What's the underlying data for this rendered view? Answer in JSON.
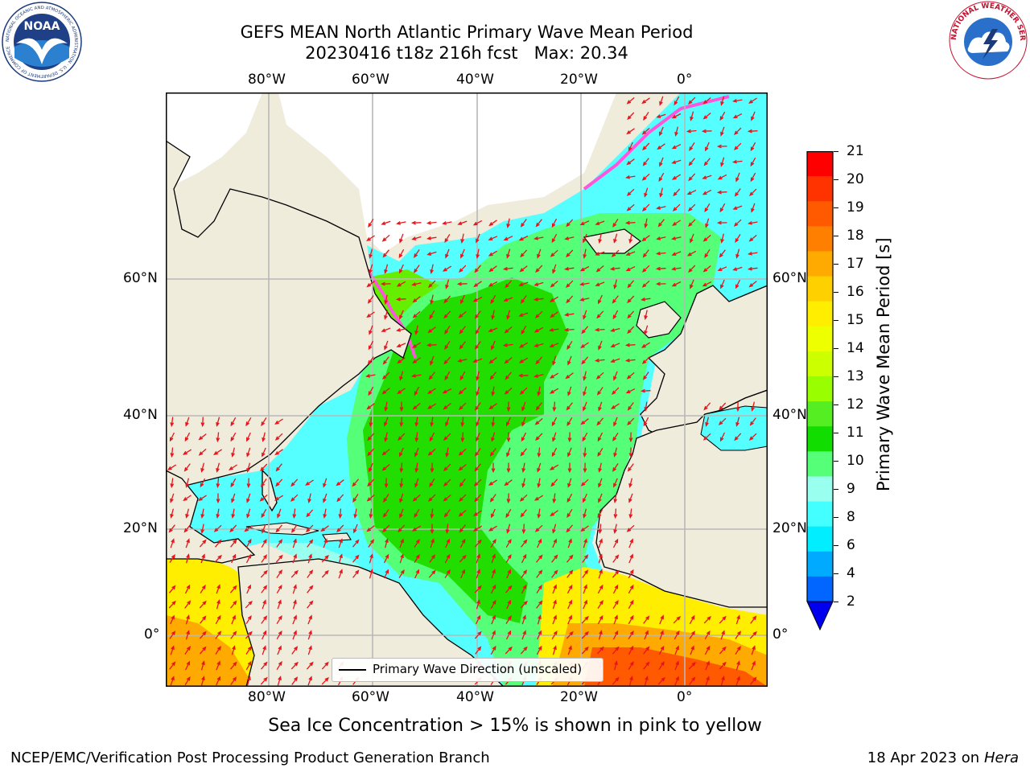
{
  "title": {
    "line1": "GEFS MEAN North Atlantic Primary Wave Mean Period",
    "line2": "20230416 t18z 216h fcst   Max: 20.34"
  },
  "map": {
    "lon_ticks_top": [
      "80°W",
      "60°W",
      "40°W",
      "20°W",
      "0°"
    ],
    "lon_ticks_bottom": [
      "80°W",
      "60°W",
      "40°W",
      "20°W",
      "0°"
    ],
    "lat_ticks_left": [
      "60°N",
      "40°N",
      "20°N",
      "0°"
    ],
    "lat_ticks_right": [
      "60°N",
      "40°N",
      "20°N",
      "0°"
    ],
    "legend_label": "Primary Wave Direction (unscaled)",
    "arrow_color": "#e8141c",
    "land_color": "#efecdc",
    "ice_color": "#ffffff"
  },
  "colorbar": {
    "title": "Primary Wave Mean Period [s]",
    "ticks": [
      "21",
      "20",
      "19",
      "18",
      "17",
      "16",
      "15",
      "14",
      "13",
      "12",
      "11",
      "10",
      "9",
      "8",
      "6",
      "4",
      "2"
    ],
    "colors": [
      "#ff0000",
      "#ff3300",
      "#ff5a00",
      "#ff8000",
      "#ffaa00",
      "#ffd000",
      "#ffee00",
      "#eeff00",
      "#ccff00",
      "#99ff00",
      "#55ee22",
      "#11dd00",
      "#55ff77",
      "#99ffee",
      "#44ffff",
      "#00eeff",
      "#00aaff",
      "#0066ff"
    ],
    "extend_color": "#0000ee"
  },
  "caption": "Sea Ice Concentration > 15% is shown in pink to yellow",
  "footer": {
    "left": "NCEP/EMC/Verification Post Processing Product Generation Branch",
    "right_date": "18 Apr 2023 on",
    "right_machine": "Hera"
  },
  "logos": {
    "noaa_text": "NOAA",
    "noaa_ring": "NATIONAL OCEANIC AND ATMOSPHERIC ADMINISTRATION · U.S. DEPARTMENT OF COMMERCE",
    "nws_ring": "NATIONAL WEATHER SERVICE"
  }
}
